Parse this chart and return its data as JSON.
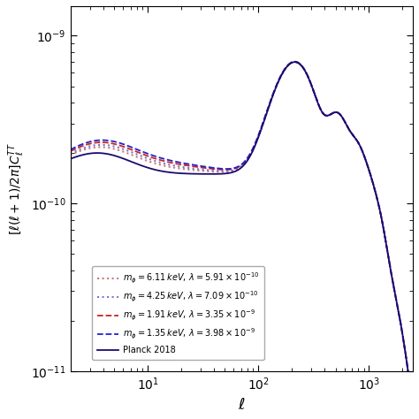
{
  "title": "",
  "xlabel": "$\\ell$",
  "ylabel": "$[\\ell(\\ell+1)/2\\pi]C_\\ell^{TT}$",
  "xlim": [
    2,
    2500
  ],
  "ylim": [
    1e-11,
    1.5e-09
  ],
  "legend_entries": [
    {
      "label": "Planck 2018",
      "color": "#1a0a6e",
      "ls": "solid",
      "lw": 1.3
    },
    {
      "label": "$m_\\phi = 1.91\\,keV,\\, \\lambda = 3.35 \\times 10^{-9}$",
      "color": "#cc2222",
      "ls": "dashed",
      "lw": 1.3
    },
    {
      "label": "$m_\\phi = 1.35\\,keV,\\, \\lambda = 3.98 \\times 10^{-9}$",
      "color": "#2222cc",
      "ls": "dashed",
      "lw": 1.3
    },
    {
      "label": "$m_\\phi = 6.11\\,keV,\\, \\lambda = 5.91 \\times 10^{-10}$",
      "color": "#cc7777",
      "ls": "dotted",
      "lw": 1.5
    },
    {
      "label": "$m_\\phi = 4.25\\,keV,\\, \\lambda = 7.09 \\times 10^{-10}$",
      "color": "#7777cc",
      "ls": "dotted",
      "lw": 1.5
    }
  ],
  "background_color": "#ffffff",
  "figsize": [
    4.74,
    4.74
  ],
  "dpi": 100
}
